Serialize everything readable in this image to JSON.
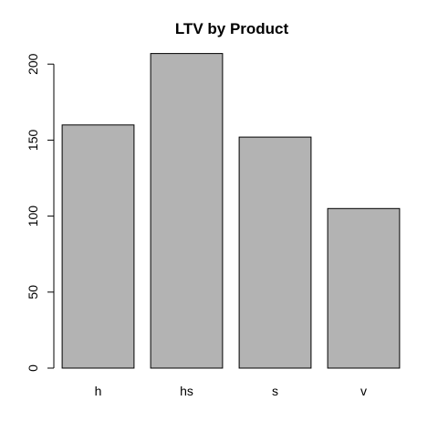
{
  "chart_data": {
    "type": "bar",
    "title": "LTV by Product",
    "xlabel": "",
    "ylabel": "",
    "categories": [
      "h",
      "hs",
      "s",
      "v"
    ],
    "values": [
      160,
      207,
      152,
      105
    ],
    "ylim": [
      0,
      210
    ],
    "yticks": [
      0,
      50,
      100,
      150,
      200
    ],
    "grid": false,
    "legend": "none",
    "bar_color": "#b3b3b3"
  }
}
